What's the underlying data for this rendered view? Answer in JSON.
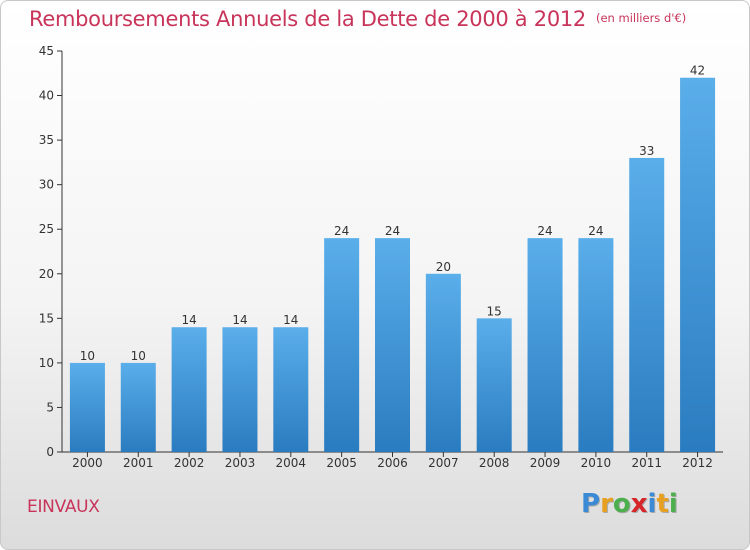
{
  "title": "Remboursements Annuels de la Dette de 2000 à 2012",
  "unit_label": "(en milliers d'€)",
  "commune": "EINVAUX",
  "logo": {
    "letters": [
      "P",
      "r",
      "o",
      "x",
      "i",
      "t",
      "i"
    ],
    "colors": [
      "#3a8ad6",
      "#e8a020",
      "#4cae4c",
      "#d6262a",
      "#3a8ad6",
      "#e8a020",
      "#4cae4c"
    ]
  },
  "colors": {
    "bar_top": "#5aaeea",
    "bar_bottom": "#2a7cc0",
    "title": "#c8345a"
  },
  "chart_data": {
    "type": "bar",
    "categories": [
      "2000",
      "2001",
      "2002",
      "2003",
      "2004",
      "2005",
      "2006",
      "2007",
      "2008",
      "2009",
      "2010",
      "2011",
      "2012"
    ],
    "values": [
      10,
      10,
      14,
      14,
      14,
      24,
      24,
      20,
      15,
      24,
      24,
      33,
      42
    ],
    "ylim": [
      0,
      45
    ],
    "yticks": [
      0,
      5,
      10,
      15,
      20,
      25,
      30,
      35,
      40,
      45
    ],
    "grid": false,
    "xlabel": "",
    "ylabel": ""
  }
}
